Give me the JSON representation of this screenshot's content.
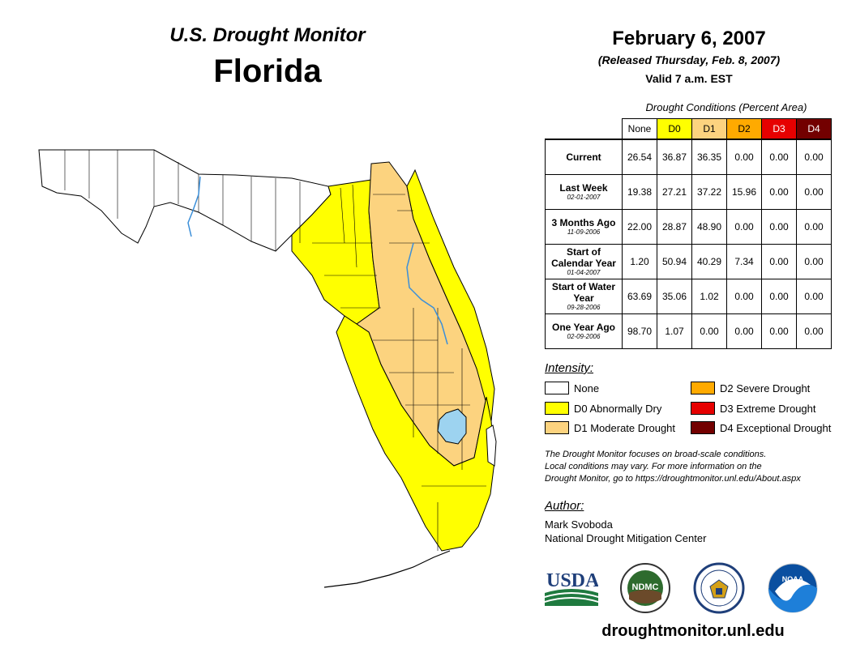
{
  "header": {
    "subtitle": "U.S. Drought Monitor",
    "state": "Florida",
    "date": "February 6, 2007",
    "released": "(Released Thursday, Feb. 8, 2007)",
    "valid": "Valid 7 a.m. EST"
  },
  "table": {
    "title": "Drought Conditions (Percent Area)",
    "columns": [
      "None",
      "D0",
      "D1",
      "D2",
      "D3",
      "D4"
    ],
    "column_colors": [
      "#ffffff",
      "#ffff00",
      "#fcd37f",
      "#ffaa00",
      "#e60000",
      "#730000"
    ],
    "rows": [
      {
        "label": "Current",
        "date": "",
        "values": [
          "26.54",
          "36.87",
          "36.35",
          "0.00",
          "0.00",
          "0.00"
        ]
      },
      {
        "label": "Last Week",
        "date": "02-01-2007",
        "values": [
          "19.38",
          "27.21",
          "37.22",
          "15.96",
          "0.00",
          "0.00"
        ]
      },
      {
        "label": "3 Months Ago",
        "date": "11-09-2006",
        "values": [
          "22.00",
          "28.87",
          "48.90",
          "0.00",
          "0.00",
          "0.00"
        ]
      },
      {
        "label": "Start of Calendar Year",
        "date": "01-04-2007",
        "values": [
          "1.20",
          "50.94",
          "40.29",
          "7.34",
          "0.00",
          "0.00"
        ]
      },
      {
        "label": "Start of Water Year",
        "date": "09-28-2006",
        "values": [
          "63.69",
          "35.06",
          "1.02",
          "0.00",
          "0.00",
          "0.00"
        ]
      },
      {
        "label": "One Year Ago",
        "date": "02-09-2006",
        "values": [
          "98.70",
          "1.07",
          "0.00",
          "0.00",
          "0.00",
          "0.00"
        ]
      }
    ]
  },
  "legend": {
    "title": "Intensity:",
    "items": [
      {
        "label": "None",
        "color": "#ffffff"
      },
      {
        "label": "D0 Abnormally Dry",
        "color": "#ffff00"
      },
      {
        "label": "D1 Moderate Drought",
        "color": "#fcd37f"
      },
      {
        "label": "D2 Severe Drought",
        "color": "#ffaa00"
      },
      {
        "label": "D3 Extreme Drought",
        "color": "#e60000"
      },
      {
        "label": "D4 Exceptional Drought",
        "color": "#730000"
      }
    ]
  },
  "note": {
    "line1": "The Drought Monitor focuses on broad-scale conditions.",
    "line2": "Local conditions may vary. For more information on the",
    "line3": "Drought Monitor, go to https://droughtmonitor.unl.edu/About.aspx"
  },
  "author": {
    "title": "Author:",
    "name": "Mark Svoboda",
    "org": "National Drought Mitigation Center"
  },
  "logos": {
    "usda": "USDA",
    "ndmc": "NDMC",
    "noaa": "NOAA"
  },
  "website": "droughtmonitor.unl.edu",
  "colors": {
    "water": "#9dd3f0",
    "river": "#3b8fd9"
  }
}
